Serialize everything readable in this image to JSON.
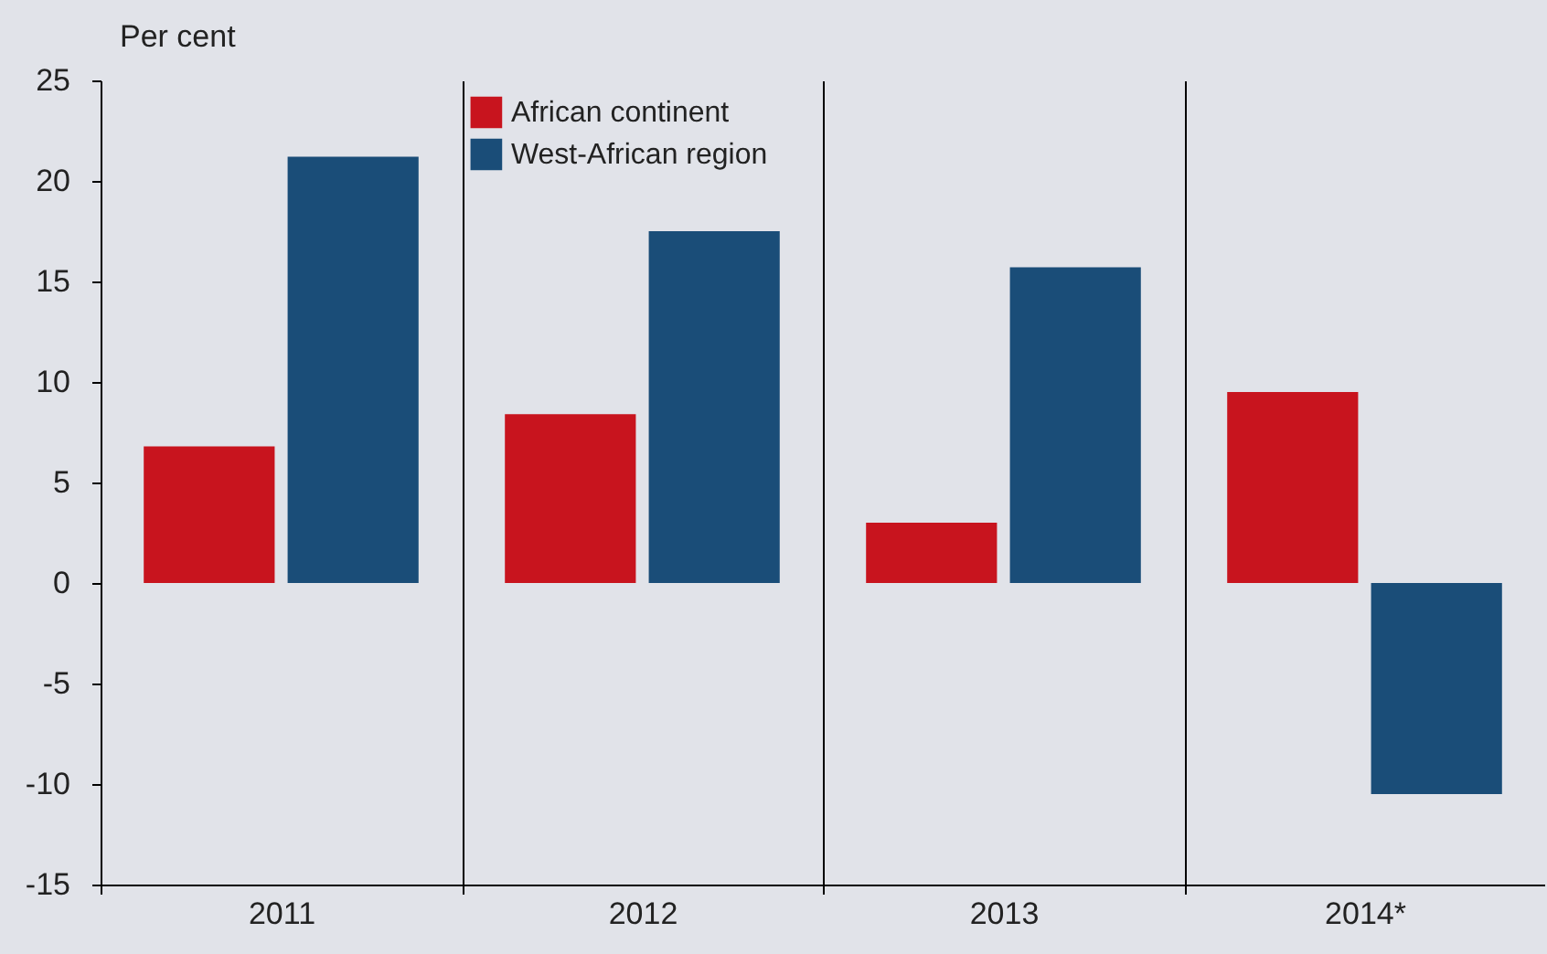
{
  "chart_data": {
    "type": "bar",
    "ylabel": "Per cent",
    "categories": [
      "2011",
      "2012",
      "2013",
      "2014*"
    ],
    "series": [
      {
        "name": "African continent",
        "color": "#c8141e",
        "values": [
          6.8,
          8.4,
          3.0,
          9.5
        ]
      },
      {
        "name": "West-African region",
        "color": "#1a4d78",
        "values": [
          21.2,
          17.5,
          15.7,
          -10.5
        ]
      }
    ],
    "ylim": [
      -15,
      25
    ],
    "yticks": [
      -15,
      -10,
      -5,
      0,
      5,
      10,
      15,
      20,
      25
    ],
    "grid": "x",
    "legend": "top left"
  }
}
